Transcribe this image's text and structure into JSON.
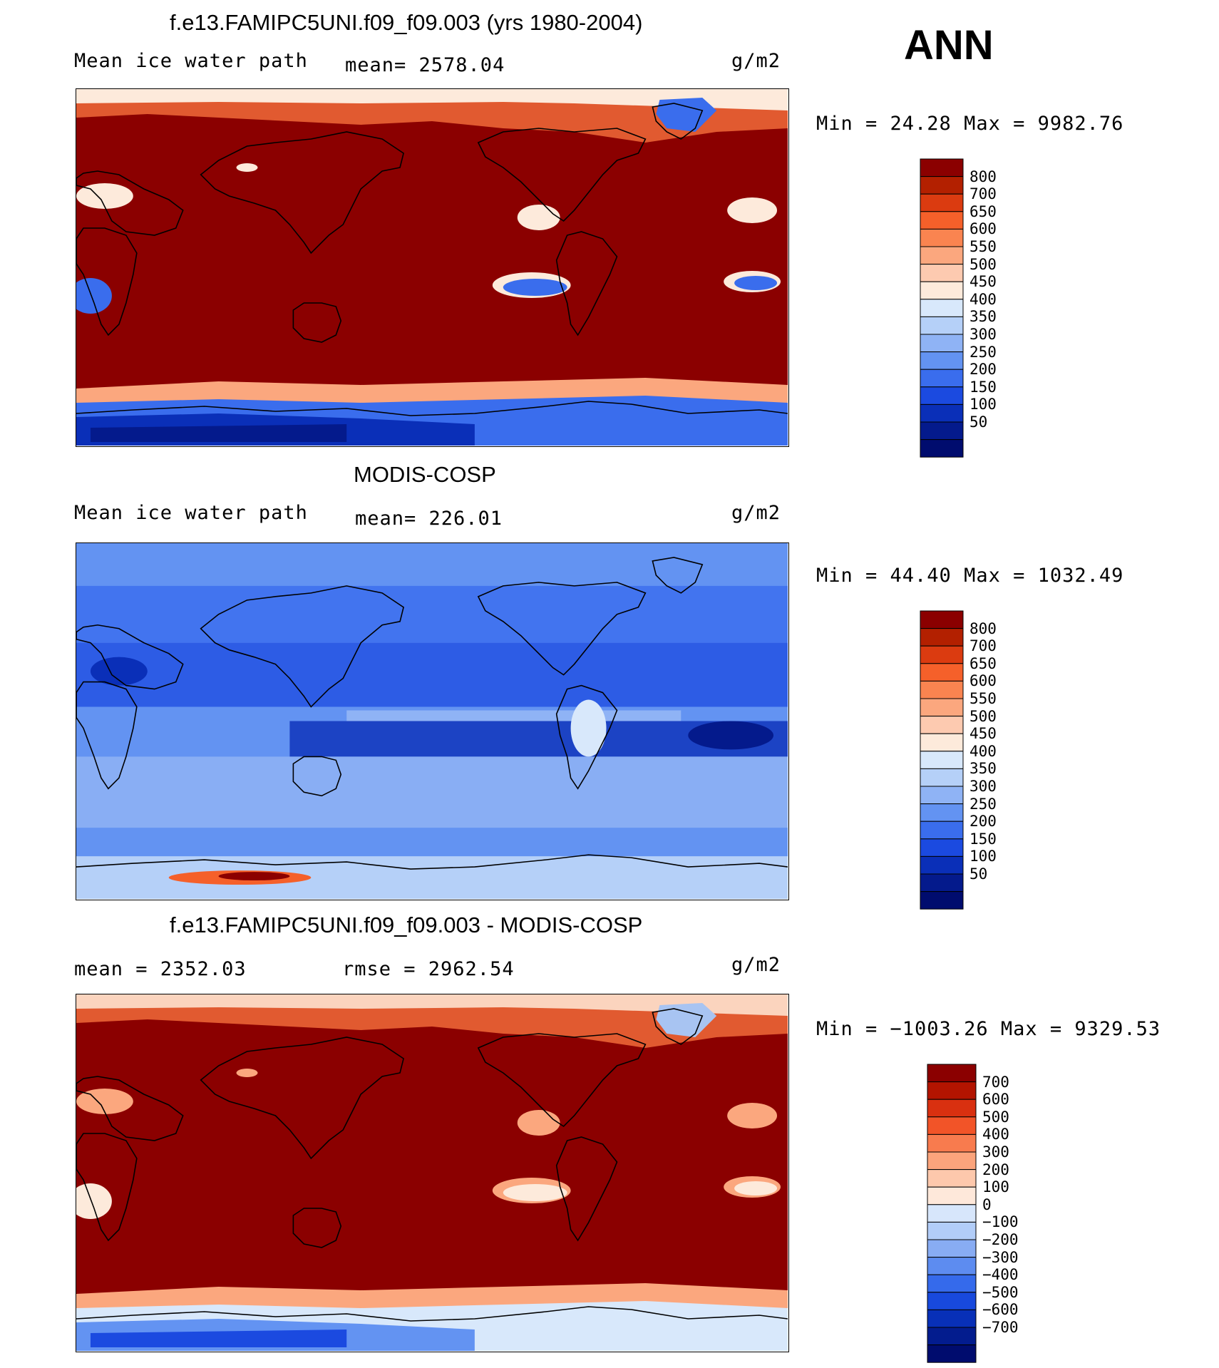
{
  "season": "ANN",
  "panels": [
    {
      "id": "model",
      "title": "f.e13.FAMIPC5UNI.f09_f09.003 (yrs 1980-2004)",
      "left_label": "Mean ice water path",
      "center_label": "mean= 2578.04",
      "units": "g/m2",
      "minmax": "Min =   24.28 Max = 9982.76",
      "field_kind": "model",
      "colorbar": {
        "colors": [
          "#8b0000",
          "#b32000",
          "#db3b10",
          "#f5602a",
          "#fa8450",
          "#fba77e",
          "#fdcab0",
          "#fdeadb",
          "#d8e8fb",
          "#b5d0f8",
          "#8fb3f5",
          "#6393f2",
          "#3a6ded",
          "#1b4ae0",
          "#0a2fb8",
          "#041a8c",
          "#000c6e"
        ],
        "labels": [
          "800",
          "700",
          "650",
          "600",
          "550",
          "500",
          "450",
          "400",
          "350",
          "300",
          "250",
          "200",
          "150",
          "100",
          "50"
        ]
      }
    },
    {
      "id": "obs",
      "title": "MODIS-COSP",
      "left_label": "Mean ice water path",
      "center_label": "mean= 226.01",
      "units": "g/m2",
      "minmax": "Min =   44.40 Max = 1032.49",
      "field_kind": "obs",
      "colorbar": {
        "colors": [
          "#8b0000",
          "#b32000",
          "#db3b10",
          "#f5602a",
          "#fa8450",
          "#fba77e",
          "#fdcab0",
          "#fdeadb",
          "#d8e8fb",
          "#b5d0f8",
          "#8fb3f5",
          "#6393f2",
          "#3a6ded",
          "#1b4ae0",
          "#0a2fb8",
          "#041a8c",
          "#000c6e"
        ],
        "labels": [
          "800",
          "700",
          "650",
          "600",
          "550",
          "500",
          "450",
          "400",
          "350",
          "300",
          "250",
          "200",
          "150",
          "100",
          "50"
        ]
      }
    },
    {
      "id": "diff",
      "title": "f.e13.FAMIPC5UNI.f09_f09.003 - MODIS-COSP",
      "left_label": "mean = 2352.03",
      "center_label": "rmse = 2962.54",
      "units": "g/m2",
      "minmax": "Min = −1003.26 Max = 9329.53",
      "field_kind": "diff",
      "colorbar": {
        "colors": [
          "#8b0000",
          "#b31400",
          "#d93010",
          "#f25428",
          "#f87b4e",
          "#fba47c",
          "#fdc8ac",
          "#fee8da",
          "#d7e6fb",
          "#b2cdf8",
          "#88acf3",
          "#5d8cf0",
          "#356aeb",
          "#1849dd",
          "#0830b8",
          "#031c8e",
          "#000c6e"
        ],
        "labels": [
          "700",
          "600",
          "500",
          "400",
          "300",
          "200",
          "100",
          "0",
          "−100",
          "−200",
          "−300",
          "−400",
          "−500",
          "−600",
          "−700"
        ]
      }
    }
  ]
}
